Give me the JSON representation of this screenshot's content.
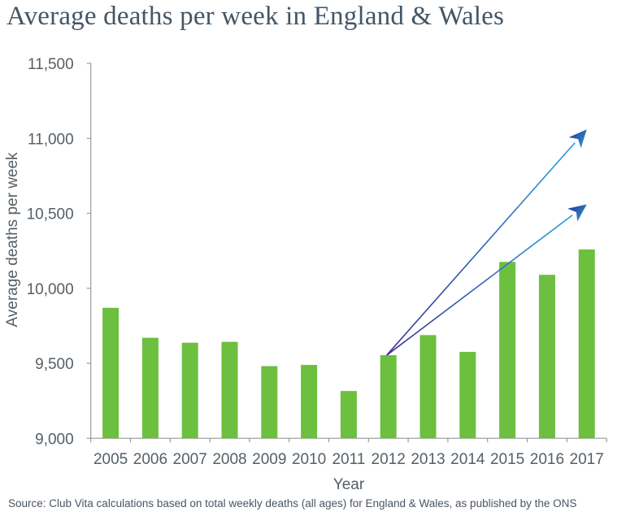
{
  "title": "Average deaths per week in England & Wales",
  "source": "Source: Club Vita calculations based on total weekly deaths (all ages) for England & Wales, as published by the ONS",
  "chart_data": {
    "type": "bar",
    "xlabel": "Year",
    "ylabel": "Average deaths per week",
    "ylim": [
      9000,
      11500
    ],
    "yticks": [
      9000,
      9500,
      10000,
      10500,
      11000,
      11500
    ],
    "ytick_labels": [
      "9,000",
      "9,500",
      "10,000",
      "10,500",
      "11,000",
      "11,500"
    ],
    "grid": false,
    "categories": [
      "2005",
      "2006",
      "2007",
      "2008",
      "2009",
      "2010",
      "2011",
      "2012",
      "2013",
      "2014",
      "2015",
      "2016",
      "2017"
    ],
    "values": [
      9870,
      9670,
      9637,
      9643,
      9481,
      9489,
      9315,
      9554,
      9688,
      9576,
      10176,
      10090,
      10259
    ],
    "bar_color": "#6dbf3f",
    "annotations": [
      {
        "type": "arrow",
        "from": {
          "x": "2012",
          "y": 9554
        },
        "to": {
          "x": "2017",
          "y": 11060
        },
        "color": "#2a7fc9"
      },
      {
        "type": "arrow",
        "from": {
          "x": "2012",
          "y": 9554
        },
        "to": {
          "x": "2017",
          "y": 10560
        },
        "color": "#2a7fc9"
      }
    ]
  }
}
